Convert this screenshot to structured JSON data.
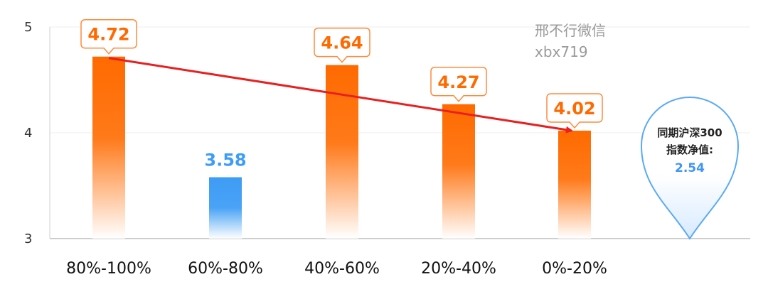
{
  "chart_data": {
    "type": "bar",
    "categories": [
      "80%-100%",
      "60%-80%",
      "40%-60%",
      "20%-40%",
      "0%-20%"
    ],
    "values": [
      4.72,
      3.58,
      4.64,
      4.27,
      4.02
    ],
    "value_labels": [
      "4.72",
      "3.58",
      "4.64",
      "4.27",
      "4.02"
    ],
    "ylim": [
      3,
      5
    ],
    "yticks": [
      "5",
      "4",
      "3"
    ],
    "title": "",
    "xlabel": "",
    "ylabel": "",
    "grid": true,
    "highlight_color": "#ff6a00",
    "bar_color": "#ff6a00",
    "contrast_color": "#3d9cf5",
    "trend_arrow": {
      "from": "80%-100%",
      "to": "0%-20%",
      "color": "#e82020"
    }
  },
  "watermark": {
    "line1": "邢不行微信",
    "line2": "xbx719"
  },
  "benchmark_pin": {
    "line1": "同期沪深300",
    "line2": "指数净值:",
    "value": "2.54",
    "border_color": "#5aaaf3"
  }
}
